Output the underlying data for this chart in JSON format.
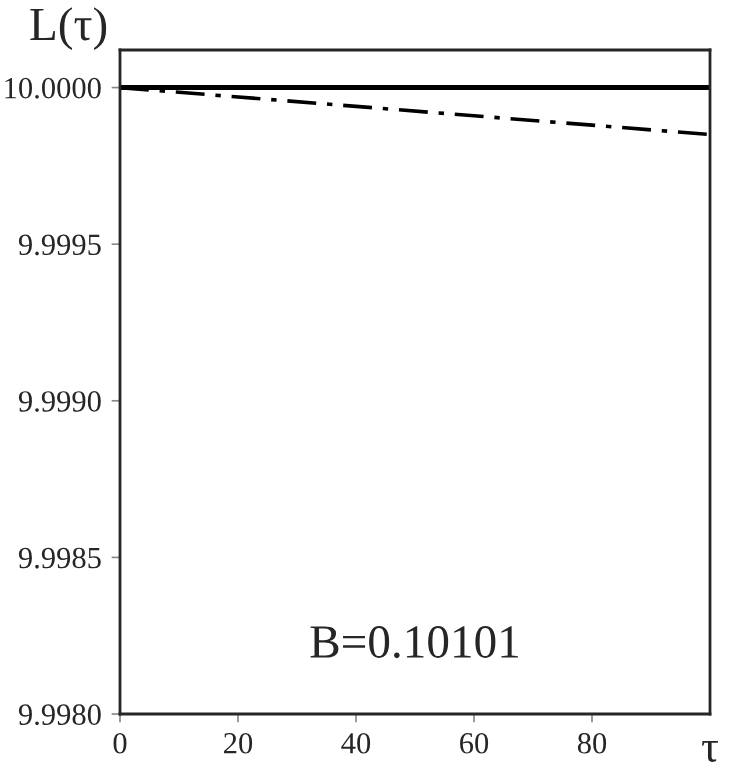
{
  "chart_data": {
    "type": "line",
    "ylabel": "L(τ)",
    "xlabel": "τ",
    "annotations": [
      "B=0.10101"
    ],
    "x": [
      0,
      100
    ],
    "series": [
      {
        "color": "#000000",
        "values": [
          10.0,
          10.0
        ],
        "line_style": "solid"
      },
      {
        "color": "#000000",
        "values": [
          10.0,
          9.99985
        ],
        "line_style": "dashdot"
      }
    ],
    "xlim": [
      0,
      100
    ],
    "xticks": [
      0,
      20,
      40,
      60,
      80
    ],
    "ylim": [
      9.998,
      10.00012
    ],
    "yticks": [
      {
        "value": 9.998,
        "label": "9.9980"
      },
      {
        "value": 9.9985,
        "label": "9.9985"
      },
      {
        "value": 9.999,
        "label": "9.9990"
      },
      {
        "value": 9.9995,
        "label": "9.9995"
      },
      {
        "value": 10.0,
        "label": "10.0000"
      }
    ],
    "grid": false,
    "legend": false
  }
}
